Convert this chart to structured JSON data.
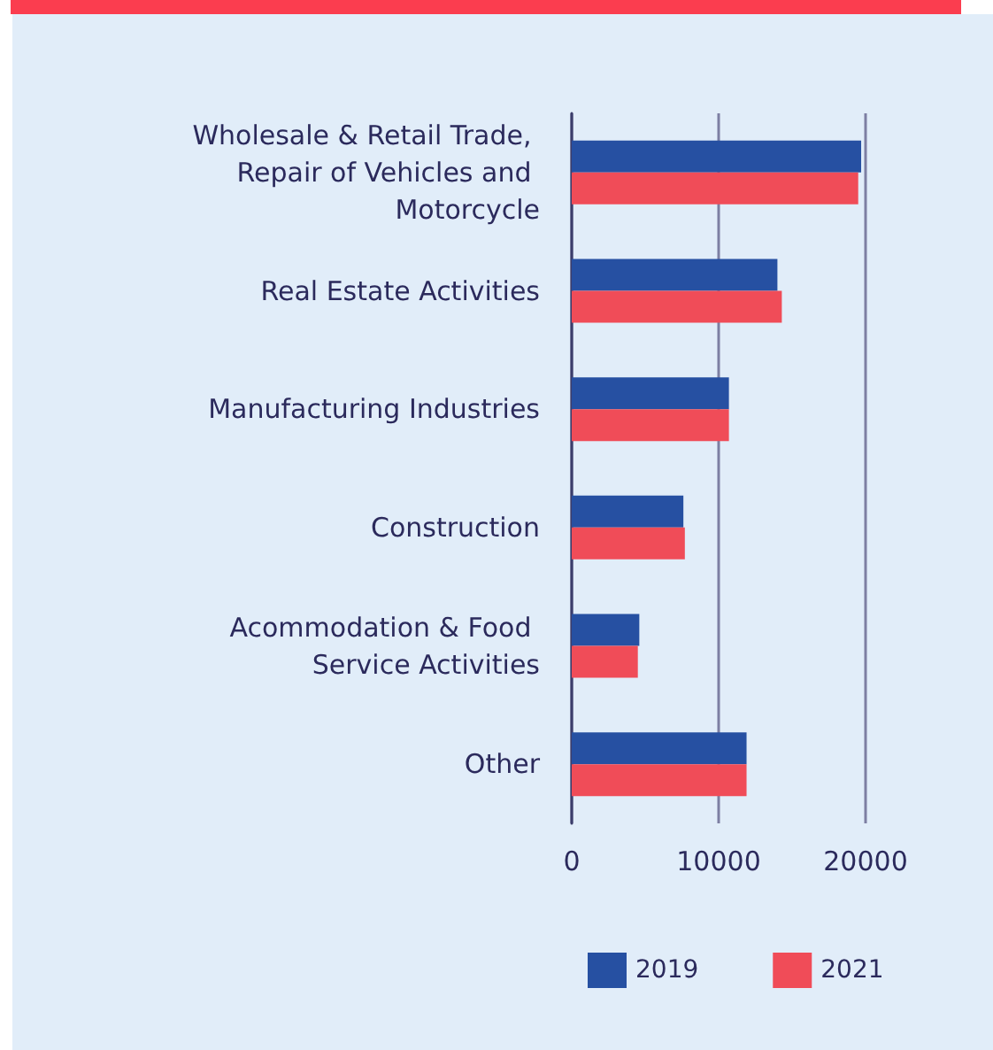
{
  "chart_data": {
    "type": "bar",
    "orientation": "horizontal",
    "categories": [
      "Wholesale & Retail Trade, Repair of Vehicles and Motorcycle",
      "Real Estate Activities",
      "Manufacturing Industries",
      "Construction",
      "Acommodation & Food Service Activities",
      "Other"
    ],
    "series": [
      {
        "name": "2019",
        "color": "#2650a2",
        "values": [
          19700,
          14000,
          10700,
          7600,
          4600,
          11900
        ]
      },
      {
        "name": "2021",
        "color": "#f04c58",
        "values": [
          19500,
          14300,
          10700,
          7700,
          4500,
          11900
        ]
      }
    ],
    "xlim": [
      0,
      20000
    ],
    "xticks": [
      0,
      10000,
      20000
    ],
    "grid": "x",
    "legend": "bottom"
  }
}
